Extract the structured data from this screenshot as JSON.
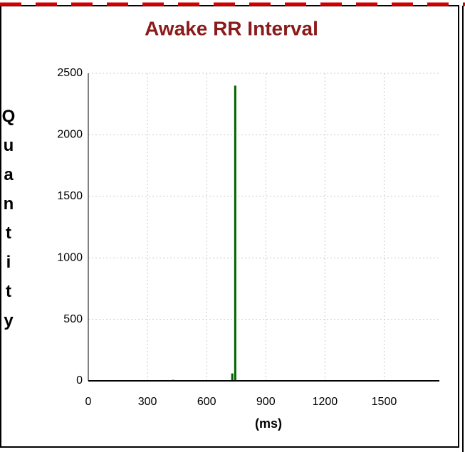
{
  "chart_data": {
    "type": "bar",
    "title": "Awake RR Interval",
    "y_label": "Quantity",
    "x_label": "(ms)",
    "x": [
      230,
      280,
      330,
      380,
      430,
      470,
      520,
      730,
      745
    ],
    "values": [
      3,
      5,
      4,
      6,
      8,
      5,
      4,
      60,
      2400
    ],
    "color": "#006400",
    "xlim": [
      0,
      1780
    ],
    "xticks": [
      0,
      300,
      600,
      900,
      1200,
      1500
    ],
    "ylim": [
      0,
      2500
    ],
    "yticks": [
      0,
      500,
      1000,
      1500,
      2000,
      2500
    ],
    "grid": true
  }
}
